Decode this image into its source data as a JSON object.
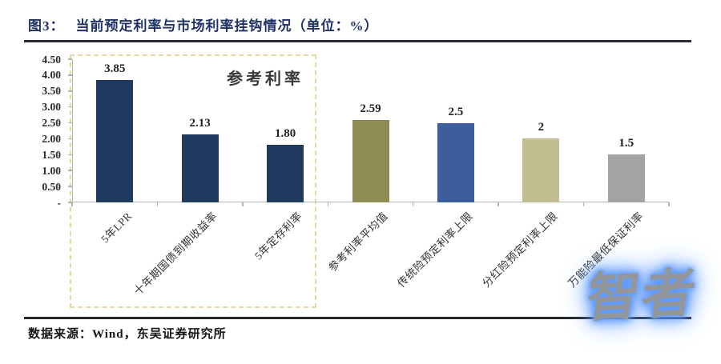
{
  "header": {
    "title_prefix": "图3：",
    "title_text": "当前预定利率与市场利率挂钩情况（单位：%）"
  },
  "chart_data": {
    "type": "bar",
    "title": "当前预定利率与市场利率挂钩情况",
    "unit": "%",
    "categories": [
      "5年LPR",
      "十年期国债到期收益率",
      "5年定存利率",
      "参考利率平均值",
      "传统险预定利率上限",
      "分红险预定利率上限",
      "万能险最低保证利率"
    ],
    "values": [
      3.85,
      2.13,
      1.8,
      2.59,
      2.5,
      2,
      1.5
    ],
    "value_labels": [
      "3.85",
      "2.13",
      "1.80",
      "2.59",
      "2.5",
      "2",
      "1.5"
    ],
    "bar_colors": [
      "#1f3a5f",
      "#1f3a5f",
      "#1f3a5f",
      "#8e8c54",
      "#3d5e9c",
      "#c3be92",
      "#a3a3a3"
    ],
    "ylim": [
      0,
      4.5
    ],
    "y_tick_labels": [
      "4.50",
      "4.00",
      "3.50",
      "3.00",
      "2.50",
      "2.00",
      "1.50",
      "1.00",
      "0.50",
      "-"
    ],
    "y_tick_values": [
      4.5,
      4.0,
      3.5,
      3.0,
      2.5,
      2.0,
      1.5,
      1.0,
      0.5,
      0
    ],
    "grid": false,
    "legend": "none",
    "annotation": {
      "label": "参考利率",
      "covers_categories": [
        0,
        1,
        2
      ],
      "box_style": "dashed",
      "box_color": "#e8d79e"
    }
  },
  "footer": {
    "source": "数据来源：Wind，东吴证券研究所"
  },
  "watermark": {
    "text": "智者",
    "text_color": "#93979c",
    "glow_color": "#4f8ef7"
  },
  "colors": {
    "title": "#1e3265",
    "rule": "#2c2c34",
    "axis": "#b3b3b3",
    "navy_bar": "#1f3a5f",
    "olive_bar": "#8e8c54",
    "blue_bar": "#3d5e9c",
    "khaki_bar": "#c3be92",
    "gray_bar": "#a3a3a3"
  }
}
